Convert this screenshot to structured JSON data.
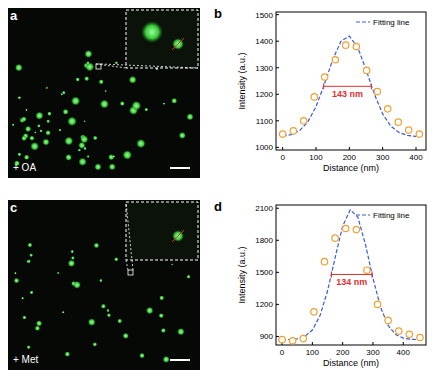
{
  "images": [
    {
      "label": "a",
      "text": "+ OA"
    },
    {
      "label": "c",
      "text": "+ Met"
    }
  ],
  "chart_data": [
    {
      "type": "line",
      "panel_label": "b",
      "x_label": "Distance (nm)",
      "y_label": "Intensity (a.u.)",
      "xlim": [
        -20,
        430
      ],
      "ylim": [
        990,
        1510
      ],
      "xticks": [
        0,
        100,
        200,
        300,
        400
      ],
      "yticks": [
        1000,
        1100,
        1200,
        1300,
        1400,
        1500
      ],
      "legend": "upper right",
      "annotations": [
        {
          "text": "143 nm",
          "x": [
            123,
            266
          ],
          "y": 1230,
          "color": "#e03030"
        }
      ],
      "series": [
        {
          "name": "Fitting line",
          "type": "line",
          "color": "#3b5bdb",
          "line_style": "dashed",
          "x": [
            0,
            25,
            50,
            75,
            100,
            125,
            150,
            175,
            200,
            225,
            250,
            275,
            300,
            325,
            350,
            375,
            400
          ],
          "values": [
            1042,
            1048,
            1062,
            1095,
            1153,
            1237,
            1330,
            1400,
            1419,
            1377,
            1293,
            1201,
            1126,
            1079,
            1055,
            1045,
            1041
          ]
        },
        {
          "type": "scatter",
          "color": "#f0a030",
          "marker": "circle",
          "x": [
            0,
            32,
            63,
            95,
            126,
            158,
            189,
            221,
            252,
            284,
            315,
            347,
            378,
            410
          ],
          "values": [
            1050,
            1062,
            1100,
            1190,
            1265,
            1330,
            1385,
            1380,
            1290,
            1210,
            1145,
            1095,
            1065,
            1050
          ]
        }
      ]
    },
    {
      "type": "line",
      "panel_label": "d",
      "x_label": "Distance (nm)",
      "y_label": "Intensity (a.u.)",
      "xlim": [
        -20,
        475
      ],
      "ylim": [
        820,
        2130
      ],
      "xticks": [
        0,
        100,
        200,
        300,
        400
      ],
      "yticks": [
        900,
        1200,
        1500,
        1800,
        2100
      ],
      "legend": "upper right",
      "annotations": [
        {
          "text": "134 nm",
          "x": [
            163,
            297
          ],
          "y": 1480,
          "color": "#e03030"
        }
      ],
      "series": [
        {
          "name": "Fitting line",
          "type": "line",
          "color": "#3b5bdb",
          "line_style": "dashed",
          "x": [
            0,
            25,
            50,
            75,
            100,
            125,
            150,
            175,
            200,
            225,
            250,
            275,
            300,
            325,
            350,
            375,
            400,
            425,
            450
          ],
          "values": [
            870,
            872,
            878,
            900,
            960,
            1093,
            1325,
            1636,
            1932,
            2085,
            2017,
            1763,
            1444,
            1174,
            1003,
            918,
            884,
            874,
            870
          ]
        },
        {
          "type": "scatter",
          "color": "#f0a030",
          "marker": "circle",
          "x": [
            0,
            35,
            70,
            105,
            140,
            175,
            210,
            245,
            280,
            315,
            350,
            385,
            420,
            455
          ],
          "values": [
            870,
            860,
            880,
            1130,
            1600,
            1820,
            1910,
            1900,
            1520,
            1200,
            1050,
            950,
            920,
            890
          ]
        }
      ]
    }
  ]
}
